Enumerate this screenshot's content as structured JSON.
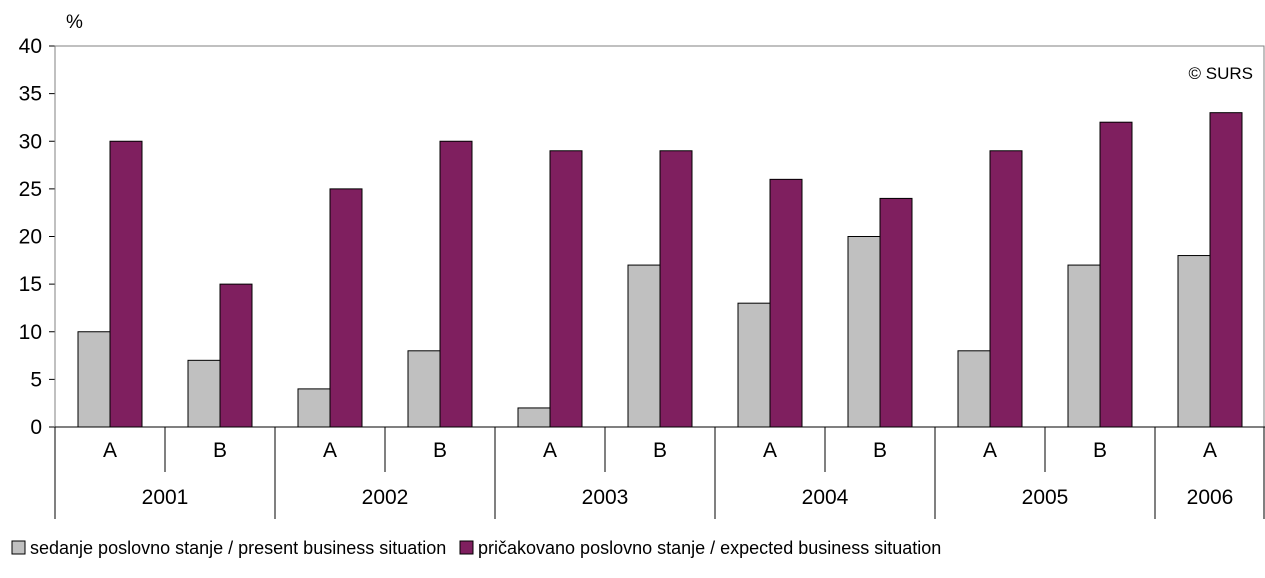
{
  "chart_data": {
    "type": "bar",
    "ylabel": "%",
    "ylim": [
      0,
      40
    ],
    "yticks": [
      0,
      5,
      10,
      15,
      20,
      25,
      30,
      35,
      40
    ],
    "copyright": "© SURS",
    "categories": [
      "A",
      "B",
      "A",
      "B",
      "A",
      "B",
      "A",
      "B",
      "A",
      "B",
      "A"
    ],
    "groups": [
      {
        "label": "2001",
        "count": 2
      },
      {
        "label": "2002",
        "count": 2
      },
      {
        "label": "2003",
        "count": 2
      },
      {
        "label": "2004",
        "count": 2
      },
      {
        "label": "2005",
        "count": 2
      },
      {
        "label": "2006",
        "count": 1
      }
    ],
    "series": [
      {
        "name": "sedanje poslovno stanje / present business situation",
        "color": "#c0c0c0",
        "values": [
          10,
          7,
          4,
          8,
          2,
          17,
          13,
          20,
          8,
          17,
          18
        ]
      },
      {
        "name": "pričakovano poslovno stanje / expected business situation",
        "color": "#7f1f5f",
        "values": [
          30,
          15,
          25,
          30,
          29,
          29,
          26,
          24,
          29,
          32,
          33
        ]
      }
    ],
    "grid": false,
    "legend_position": "bottom"
  }
}
